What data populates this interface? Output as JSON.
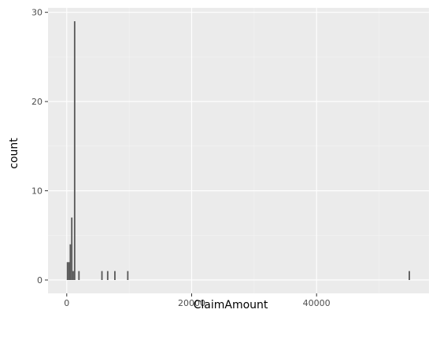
{
  "chart_data": {
    "type": "bar",
    "subtype": "histogram",
    "xlabel": "ClaimAmount",
    "ylabel": "count",
    "xlim": [
      -3000,
      58000
    ],
    "ylim": [
      -1.5,
      30.5
    ],
    "x_ticks": [
      0,
      20000,
      40000
    ],
    "x_tick_labels": [
      "0",
      "20000",
      "40000"
    ],
    "y_ticks": [
      0,
      10,
      20,
      30
    ],
    "y_tick_labels": [
      "0",
      "10",
      "20",
      "30"
    ],
    "bin_width": 230,
    "bins": [
      {
        "x": 0,
        "count": 2
      },
      {
        "x": 230,
        "count": 2
      },
      {
        "x": 460,
        "count": 4
      },
      {
        "x": 690,
        "count": 7
      },
      {
        "x": 920,
        "count": 1
      },
      {
        "x": 1150,
        "count": 29
      },
      {
        "x": 1840,
        "count": 1
      },
      {
        "x": 5520,
        "count": 1
      },
      {
        "x": 6440,
        "count": 1
      },
      {
        "x": 7590,
        "count": 1
      },
      {
        "x": 9660,
        "count": 1
      },
      {
        "x": 54740,
        "count": 1
      }
    ],
    "grid": true,
    "legend": "none",
    "colors": {
      "panel": "#EBEBEB",
      "grid_major": "#FFFFFF",
      "grid_minor": "#F4F4F4",
      "bar": "#595959",
      "tick_text": "#4D4D4D",
      "axis_title": "#000000"
    }
  }
}
